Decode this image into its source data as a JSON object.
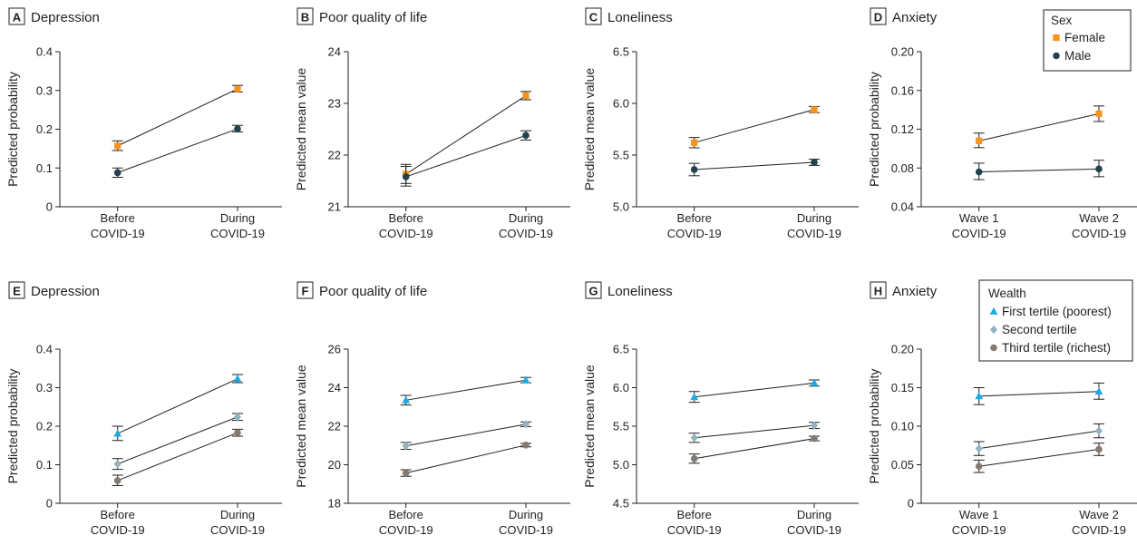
{
  "colors": {
    "female": "#f7941d",
    "male": "#22424f",
    "tertile1": "#1aabe4",
    "tertile2": "#8fb3c0",
    "tertile3": "#857a70",
    "line": "#231f20"
  },
  "legends": {
    "sex": {
      "title": "Sex",
      "items": [
        "Female",
        "Male"
      ]
    },
    "wealth": {
      "title": "Wealth",
      "items": [
        "First tertile (poorest)",
        "Second tertile",
        "Third tertile (richest)"
      ]
    }
  },
  "chart_data": [
    {
      "panel": "A",
      "title": "Depression",
      "type": "line",
      "ylabel": "Predicted probability",
      "ylim": [
        0,
        0.4
      ],
      "yticks": [
        "0",
        "0.1",
        "0.2",
        "0.3",
        "0.4"
      ],
      "categories": [
        [
          "Before",
          "COVID-19"
        ],
        [
          "During",
          "COVID-19"
        ]
      ],
      "series": [
        {
          "name": "Female",
          "values": [
            0.157,
            0.304
          ],
          "lower": [
            0.145,
            0.296
          ],
          "upper": [
            0.17,
            0.313
          ]
        },
        {
          "name": "Male",
          "values": [
            0.088,
            0.201
          ],
          "lower": [
            0.076,
            0.193
          ],
          "upper": [
            0.1,
            0.21
          ]
        }
      ]
    },
    {
      "panel": "B",
      "title": "Poor quality of life",
      "type": "line",
      "ylabel": "Predicted mean value",
      "ylim": [
        21,
        24
      ],
      "yticks": [
        "21",
        "22",
        "23",
        "24"
      ],
      "categories": [
        [
          "Before",
          "COVID-19"
        ],
        [
          "During",
          "COVID-19"
        ]
      ],
      "series": [
        {
          "name": "Female",
          "values": [
            21.63,
            23.15
          ],
          "lower": [
            21.45,
            23.07
          ],
          "upper": [
            21.78,
            23.23
          ]
        },
        {
          "name": "Male",
          "values": [
            21.58,
            22.38
          ],
          "lower": [
            21.4,
            22.29
          ],
          "upper": [
            21.82,
            22.47
          ]
        }
      ]
    },
    {
      "panel": "C",
      "title": "Loneliness",
      "type": "line",
      "ylabel": "Predicted mean value",
      "ylim": [
        5.0,
        6.5
      ],
      "yticks": [
        "5.0",
        "5.5",
        "6.0",
        "6.5"
      ],
      "categories": [
        [
          "Before",
          "COVID-19"
        ],
        [
          "During",
          "COVID-19"
        ]
      ],
      "series": [
        {
          "name": "Female",
          "values": [
            5.62,
            5.94
          ],
          "lower": [
            5.57,
            5.91
          ],
          "upper": [
            5.67,
            5.97
          ]
        },
        {
          "name": "Male",
          "values": [
            5.36,
            5.43
          ],
          "lower": [
            5.3,
            5.4
          ],
          "upper": [
            5.42,
            5.46
          ]
        }
      ]
    },
    {
      "panel": "D",
      "title": "Anxiety",
      "type": "line",
      "ylabel": "Predicted probability",
      "ylim": [
        0.04,
        0.2
      ],
      "yticks": [
        "0.04",
        "0.08",
        "0.12",
        "0.16",
        "0.20"
      ],
      "categories": [
        [
          "Wave 1",
          "COVID-19"
        ],
        [
          "Wave 2",
          "COVID-19"
        ]
      ],
      "series": [
        {
          "name": "Female",
          "values": [
            0.108,
            0.136
          ],
          "lower": [
            0.101,
            0.128
          ],
          "upper": [
            0.116,
            0.144
          ]
        },
        {
          "name": "Male",
          "values": [
            0.076,
            0.079
          ],
          "lower": [
            0.068,
            0.071
          ],
          "upper": [
            0.085,
            0.088
          ]
        }
      ]
    },
    {
      "panel": "E",
      "title": "Depression",
      "type": "line",
      "ylabel": "Predicted probability",
      "ylim": [
        0,
        0.4
      ],
      "yticks": [
        "0",
        "0.1",
        "0.2",
        "0.3",
        "0.4"
      ],
      "categories": [
        [
          "Before",
          "COVID-19"
        ],
        [
          "During",
          "COVID-19"
        ]
      ],
      "series": [
        {
          "name": "First tertile (poorest)",
          "values": [
            0.181,
            0.323
          ],
          "lower": [
            0.163,
            0.313
          ],
          "upper": [
            0.2,
            0.334
          ]
        },
        {
          "name": "Second tertile",
          "values": [
            0.102,
            0.224
          ],
          "lower": [
            0.088,
            0.215
          ],
          "upper": [
            0.116,
            0.233
          ]
        },
        {
          "name": "Third tertile (richest)",
          "values": [
            0.059,
            0.183
          ],
          "lower": [
            0.046,
            0.174
          ],
          "upper": [
            0.073,
            0.192
          ]
        }
      ]
    },
    {
      "panel": "F",
      "title": "Poor quality of life",
      "type": "line",
      "ylabel": "Predicted mean value",
      "ylim": [
        18,
        26
      ],
      "yticks": [
        "18",
        "20",
        "22",
        "24",
        "26"
      ],
      "categories": [
        [
          "Before",
          "COVID-19"
        ],
        [
          "During",
          "COVID-19"
        ]
      ],
      "series": [
        {
          "name": "First tertile (poorest)",
          "values": [
            23.35,
            24.39
          ],
          "lower": [
            23.1,
            24.25
          ],
          "upper": [
            23.6,
            24.53
          ]
        },
        {
          "name": "Second tertile",
          "values": [
            20.98,
            22.1
          ],
          "lower": [
            20.8,
            21.98
          ],
          "upper": [
            21.16,
            22.22
          ]
        },
        {
          "name": "Third tertile (richest)",
          "values": [
            19.57,
            21.02
          ],
          "lower": [
            19.4,
            20.93
          ],
          "upper": [
            19.74,
            21.11
          ]
        }
      ]
    },
    {
      "panel": "G",
      "title": "Loneliness",
      "type": "line",
      "ylabel": "Predicted mean value",
      "ylim": [
        4.5,
        6.5
      ],
      "yticks": [
        "4.5",
        "5.0",
        "5.5",
        "6.0",
        "6.5"
      ],
      "categories": [
        [
          "Before",
          "COVID-19"
        ],
        [
          "During",
          "COVID-19"
        ]
      ],
      "series": [
        {
          "name": "First tertile (poorest)",
          "values": [
            5.88,
            6.06
          ],
          "lower": [
            5.81,
            6.02
          ],
          "upper": [
            5.95,
            6.1
          ]
        },
        {
          "name": "Second tertile",
          "values": [
            5.35,
            5.51
          ],
          "lower": [
            5.29,
            5.47
          ],
          "upper": [
            5.41,
            5.55
          ]
        },
        {
          "name": "Third tertile (richest)",
          "values": [
            5.08,
            5.34
          ],
          "lower": [
            5.02,
            5.31
          ],
          "upper": [
            5.14,
            5.37
          ]
        }
      ]
    },
    {
      "panel": "H",
      "title": "Anxiety",
      "type": "line",
      "ylabel": "Predicted probability",
      "ylim": [
        0,
        0.2
      ],
      "yticks": [
        "0",
        "0.05",
        "0.10",
        "0.15",
        "0.20"
      ],
      "categories": [
        [
          "Wave 1",
          "COVID-19"
        ],
        [
          "Wave 2",
          "COVID-19"
        ]
      ],
      "series": [
        {
          "name": "First tertile (poorest)",
          "values": [
            0.139,
            0.145
          ],
          "lower": [
            0.128,
            0.135
          ],
          "upper": [
            0.15,
            0.156
          ]
        },
        {
          "name": "Second tertile",
          "values": [
            0.071,
            0.094
          ],
          "lower": [
            0.062,
            0.085
          ],
          "upper": [
            0.08,
            0.103
          ]
        },
        {
          "name": "Third tertile (richest)",
          "values": [
            0.048,
            0.07
          ],
          "lower": [
            0.04,
            0.062
          ],
          "upper": [
            0.056,
            0.078
          ]
        }
      ]
    }
  ]
}
